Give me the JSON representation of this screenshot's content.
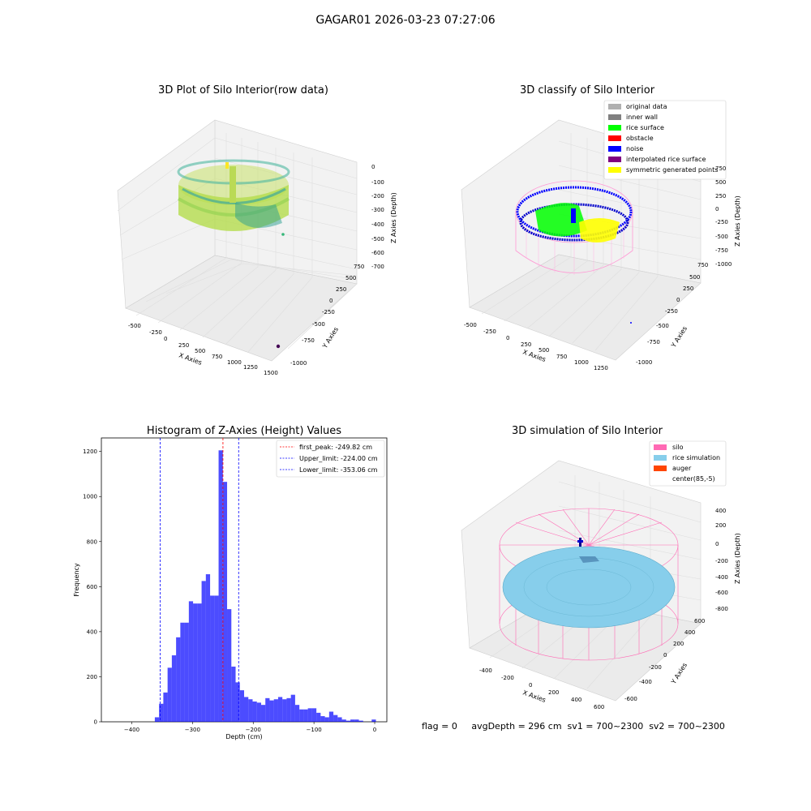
{
  "figure": {
    "suptitle": "GAGAR01 2026-03-23 07:27:06",
    "status_line": "flag = 0     avgDepth = 296 cm  sv1 = 700~2300  sv2 = 700~2300"
  },
  "panels": {
    "raw": {
      "title": "3D Plot of Silo Interior(row data)",
      "xlabel": "X Axies",
      "ylabel": "Y Axies",
      "zlabel": "Z Axies (Depth)",
      "xticks": [
        "-500",
        "-250",
        "0",
        "250",
        "500",
        "750",
        "1000",
        "1250",
        "1500"
      ],
      "yticks": [
        "-1000",
        "-750",
        "-500",
        "-250",
        "0",
        "250",
        "500",
        "750"
      ],
      "zticks": [
        "0",
        "-100",
        "-200",
        "-300",
        "-400",
        "-500",
        "-600",
        "-700"
      ]
    },
    "classify": {
      "title": "3D classify of Silo Interior",
      "xlabel": "X Axies",
      "ylabel": "Y Axies",
      "zlabel": "Z Axies (Depth)",
      "xticks": [
        "-500",
        "-250",
        "0",
        "250",
        "500",
        "750",
        "1000",
        "1250"
      ],
      "yticks": [
        "-1000",
        "-750",
        "-500",
        "-250",
        "0",
        "250",
        "500",
        "750"
      ],
      "zticks": [
        "750",
        "500",
        "250",
        "0",
        "-250",
        "-500",
        "-750",
        "-1000"
      ],
      "legend": [
        {
          "label": "original data",
          "color": "#b0b0b0"
        },
        {
          "label": "inner wall",
          "color": "#808080"
        },
        {
          "label": "rice surface",
          "color": "#00ff00"
        },
        {
          "label": "obstacle",
          "color": "#ff0000"
        },
        {
          "label": "noise",
          "color": "#0000ff"
        },
        {
          "label": "interpolated rice surface",
          "color": "#800080"
        },
        {
          "label": "symmetric generated points",
          "color": "#ffff00"
        }
      ]
    },
    "simulation": {
      "title": "3D simulation of Silo Interior",
      "xlabel": "X Axies",
      "ylabel": "Y Axies",
      "zlabel": "Z Axies (Depth)",
      "xticks": [
        "-400",
        "-200",
        "0",
        "200",
        "400",
        "600"
      ],
      "yticks": [
        "-600",
        "-400",
        "-200",
        "0",
        "200",
        "400",
        "600"
      ],
      "zticks": [
        "400",
        "200",
        "0",
        "-200",
        "-400",
        "-600",
        "-800"
      ],
      "legend": [
        {
          "label": "silo",
          "color": "#ff69b4"
        },
        {
          "label": "rice simulation",
          "color": "#87ceeb"
        },
        {
          "label": "auger",
          "color": "#ff4500"
        },
        {
          "label": "center(85,-5)",
          "color": "#ffffff"
        }
      ]
    }
  },
  "chart_data": [
    {
      "type": "bar",
      "title": "Histogram of Z-Axies (Height) Values",
      "xlabel": "Depth (cm)",
      "ylabel": "Frequency",
      "xlim": [
        -450,
        20
      ],
      "ylim": [
        0,
        1260
      ],
      "xticks": [
        -400,
        -300,
        -200,
        -100,
        0
      ],
      "yticks": [
        0,
        200,
        400,
        600,
        800,
        1000,
        1200
      ],
      "bar_color": "#0000ff",
      "bins": [
        {
          "left": -362,
          "right": -355,
          "value": 20
        },
        {
          "left": -355,
          "right": -348,
          "value": 80
        },
        {
          "left": -348,
          "right": -341,
          "value": 130
        },
        {
          "left": -341,
          "right": -334,
          "value": 240
        },
        {
          "left": -334,
          "right": -327,
          "value": 295
        },
        {
          "left": -327,
          "right": -320,
          "value": 375
        },
        {
          "left": -320,
          "right": -313,
          "value": 440
        },
        {
          "left": -313,
          "right": -306,
          "value": 440
        },
        {
          "left": -306,
          "right": -299,
          "value": 535
        },
        {
          "left": -299,
          "right": -292,
          "value": 525
        },
        {
          "left": -292,
          "right": -285,
          "value": 525
        },
        {
          "left": -285,
          "right": -278,
          "value": 625
        },
        {
          "left": -278,
          "right": -271,
          "value": 655
        },
        {
          "left": -271,
          "right": -264,
          "value": 560
        },
        {
          "left": -264,
          "right": -257,
          "value": 560
        },
        {
          "left": -257,
          "right": -250,
          "value": 1205
        },
        {
          "left": -250,
          "right": -243,
          "value": 1065
        },
        {
          "left": -243,
          "right": -236,
          "value": 500
        },
        {
          "left": -236,
          "right": -229,
          "value": 245
        },
        {
          "left": -229,
          "right": -222,
          "value": 175
        },
        {
          "left": -222,
          "right": -215,
          "value": 140
        },
        {
          "left": -215,
          "right": -208,
          "value": 110
        },
        {
          "left": -208,
          "right": -201,
          "value": 100
        },
        {
          "left": -201,
          "right": -194,
          "value": 90
        },
        {
          "left": -194,
          "right": -187,
          "value": 85
        },
        {
          "left": -187,
          "right": -180,
          "value": 75
        },
        {
          "left": -180,
          "right": -173,
          "value": 105
        },
        {
          "left": -173,
          "right": -166,
          "value": 95
        },
        {
          "left": -166,
          "right": -159,
          "value": 100
        },
        {
          "left": -159,
          "right": -152,
          "value": 110
        },
        {
          "left": -152,
          "right": -145,
          "value": 100
        },
        {
          "left": -145,
          "right": -138,
          "value": 105
        },
        {
          "left": -138,
          "right": -131,
          "value": 120
        },
        {
          "left": -131,
          "right": -124,
          "value": 75
        },
        {
          "left": -124,
          "right": -117,
          "value": 55
        },
        {
          "left": -117,
          "right": -110,
          "value": 55
        },
        {
          "left": -110,
          "right": -103,
          "value": 60
        },
        {
          "left": -103,
          "right": -96,
          "value": 60
        },
        {
          "left": -96,
          "right": -89,
          "value": 40
        },
        {
          "left": -89,
          "right": -82,
          "value": 25
        },
        {
          "left": -82,
          "right": -75,
          "value": 20
        },
        {
          "left": -75,
          "right": -68,
          "value": 45
        },
        {
          "left": -68,
          "right": -61,
          "value": 30
        },
        {
          "left": -61,
          "right": -54,
          "value": 20
        },
        {
          "left": -54,
          "right": -47,
          "value": 10
        },
        {
          "left": -47,
          "right": -40,
          "value": 5
        },
        {
          "left": -40,
          "right": -33,
          "value": 10
        },
        {
          "left": -33,
          "right": -26,
          "value": 10
        },
        {
          "left": -26,
          "right": -19,
          "value": 5
        },
        {
          "left": -19,
          "right": -12,
          "value": 0
        },
        {
          "left": -12,
          "right": -5,
          "value": 0
        },
        {
          "left": -5,
          "right": 2,
          "value": 10
        }
      ],
      "vlines": [
        {
          "label": "first_peak: -249.82 cm",
          "x": -249.82,
          "color": "#ff0000"
        },
        {
          "label": "Upper_limit: -224.00 cm",
          "x": -224.0,
          "color": "#0000ff"
        },
        {
          "label": "Lower_limit: -353.06 cm",
          "x": -353.06,
          "color": "#0000ff"
        }
      ],
      "legend_position": "top-right"
    }
  ]
}
